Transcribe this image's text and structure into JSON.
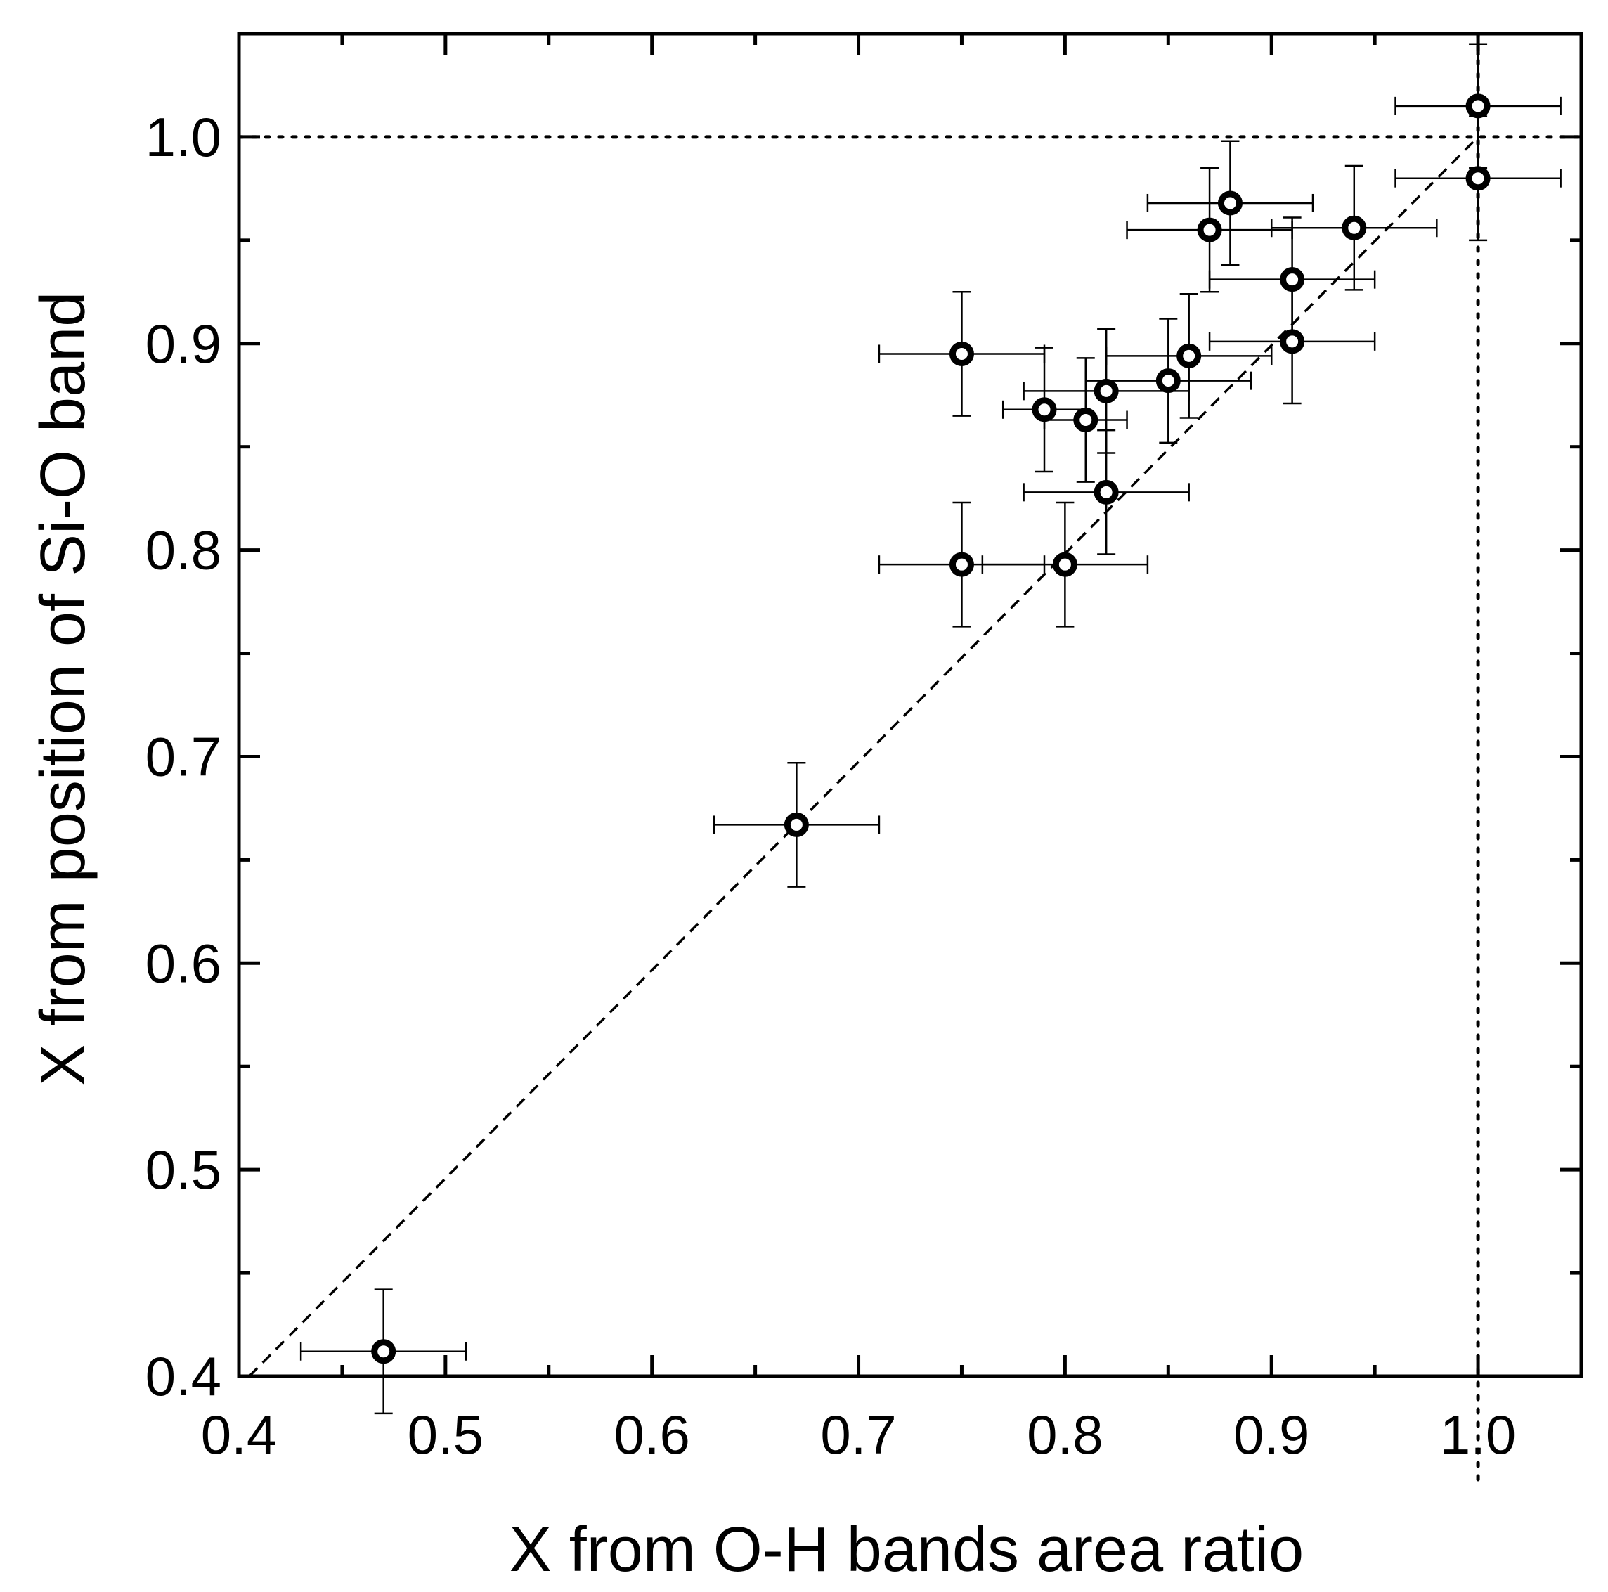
{
  "chart_data": {
    "type": "scatter",
    "title": "",
    "xlabel": "X from O-H bands area ratio",
    "ylabel": "X from position of Si-O band",
    "xlim": [
      0.4,
      1.05
    ],
    "ylim": [
      0.4,
      1.05
    ],
    "x_ticks": [
      "0.4",
      "0.5",
      "0.6",
      "0.7",
      "0.8",
      "0.9",
      "1.0"
    ],
    "y_ticks": [
      "0.4",
      "0.5",
      "0.6",
      "0.7",
      "0.8",
      "0.9",
      "1.0"
    ],
    "grid": false,
    "reference_lines": [
      {
        "name": "identity",
        "style": "dashed",
        "from": [
          0.405,
          0.4
        ],
        "to": [
          1.0,
          1.0
        ]
      },
      {
        "name": "y-equals-1",
        "style": "dotted",
        "y": 1.0
      },
      {
        "name": "x-equals-1",
        "style": "dotted",
        "x": 1.0
      }
    ],
    "series": [
      {
        "name": "samples",
        "marker": "open-circle",
        "points": [
          {
            "x": 0.47,
            "y": 0.412,
            "xerr": 0.04,
            "yerr": 0.03
          },
          {
            "x": 0.67,
            "y": 0.667,
            "xerr": 0.04,
            "yerr": 0.03
          },
          {
            "x": 0.75,
            "y": 0.793,
            "xerr": 0.04,
            "yerr": 0.03
          },
          {
            "x": 0.8,
            "y": 0.793,
            "xerr": 0.04,
            "yerr": 0.03
          },
          {
            "x": 0.75,
            "y": 0.895,
            "xerr": 0.04,
            "yerr": 0.03
          },
          {
            "x": 0.79,
            "y": 0.868,
            "xerr": 0.02,
            "yerr": 0.03
          },
          {
            "x": 0.81,
            "y": 0.863,
            "xerr": 0.02,
            "yerr": 0.03
          },
          {
            "x": 0.82,
            "y": 0.877,
            "xerr": 0.04,
            "yerr": 0.03
          },
          {
            "x": 0.82,
            "y": 0.828,
            "xerr": 0.04,
            "yerr": 0.03
          },
          {
            "x": 0.85,
            "y": 0.882,
            "xerr": 0.04,
            "yerr": 0.03
          },
          {
            "x": 0.86,
            "y": 0.894,
            "xerr": 0.04,
            "yerr": 0.03
          },
          {
            "x": 0.87,
            "y": 0.955,
            "xerr": 0.04,
            "yerr": 0.03
          },
          {
            "x": 0.88,
            "y": 0.968,
            "xerr": 0.04,
            "yerr": 0.03
          },
          {
            "x": 0.91,
            "y": 0.931,
            "xerr": 0.04,
            "yerr": 0.03
          },
          {
            "x": 0.91,
            "y": 0.901,
            "xerr": 0.04,
            "yerr": 0.03
          },
          {
            "x": 0.94,
            "y": 0.956,
            "xerr": 0.04,
            "yerr": 0.03
          },
          {
            "x": 1.0,
            "y": 1.015,
            "xerr": 0.04,
            "yerr": 0.03
          },
          {
            "x": 1.0,
            "y": 0.98,
            "xerr": 0.04,
            "yerr": 0.03
          }
        ]
      }
    ]
  }
}
